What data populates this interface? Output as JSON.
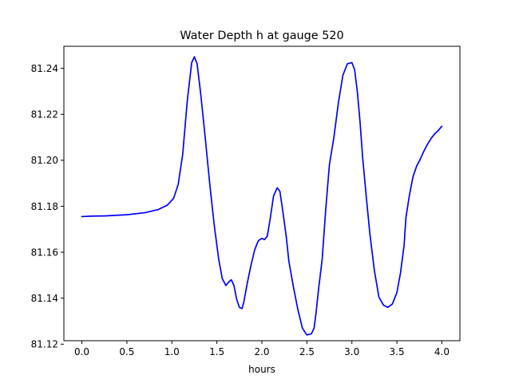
{
  "chart_data": {
    "type": "line",
    "title": "Water Depth h at gauge 520",
    "xlabel": "hours",
    "ylabel": "",
    "xlim": [
      -0.2,
      4.2
    ],
    "ylim": [
      81.1215,
      81.2496
    ],
    "xticks": [
      0.0,
      0.5,
      1.0,
      1.5,
      2.0,
      2.5,
      3.0,
      3.5,
      4.0
    ],
    "xtick_labels": [
      "0.0",
      "0.5",
      "1.0",
      "1.5",
      "2.0",
      "2.5",
      "3.0",
      "3.5",
      "4.0"
    ],
    "yticks": [
      81.12,
      81.14,
      81.16,
      81.18,
      81.2,
      81.22,
      81.24
    ],
    "ytick_labels": [
      "81.12",
      "81.14",
      "81.16",
      "81.18",
      "81.20",
      "81.22",
      "81.24"
    ],
    "grid": false,
    "series": [
      {
        "color": "#0000ff",
        "x": [
          0.0,
          0.1,
          0.25,
          0.5,
          0.7,
          0.85,
          0.95,
          1.02,
          1.07,
          1.12,
          1.17,
          1.22,
          1.25,
          1.28,
          1.32,
          1.37,
          1.42,
          1.47,
          1.52,
          1.56,
          1.6,
          1.63,
          1.66,
          1.69,
          1.72,
          1.75,
          1.78,
          1.8,
          1.84,
          1.88,
          1.92,
          1.96,
          2.0,
          2.03,
          2.06,
          2.09,
          2.13,
          2.17,
          2.2,
          2.23,
          2.27,
          2.3,
          2.35,
          2.4,
          2.45,
          2.5,
          2.55,
          2.58,
          2.6,
          2.63,
          2.67,
          2.71,
          2.75,
          2.8,
          2.85,
          2.9,
          2.95,
          3.0,
          3.03,
          3.06,
          3.09,
          3.12,
          3.16,
          3.2,
          3.25,
          3.3,
          3.35,
          3.4,
          3.45,
          3.5,
          3.54,
          3.58,
          3.6,
          3.64,
          3.68,
          3.72,
          3.76,
          3.8,
          3.84,
          3.88,
          3.92,
          3.96,
          4.0
        ],
        "y": [
          81.1755,
          81.1757,
          81.1758,
          81.1763,
          81.1772,
          81.1786,
          81.1805,
          81.1835,
          81.1895,
          81.2025,
          81.2255,
          81.2425,
          81.245,
          81.242,
          81.229,
          81.21,
          81.19,
          81.172,
          81.157,
          81.1485,
          81.1455,
          81.147,
          81.148,
          81.1455,
          81.1395,
          81.136,
          81.1355,
          81.1385,
          81.147,
          81.1545,
          81.161,
          81.165,
          81.166,
          81.1655,
          81.167,
          81.174,
          81.1845,
          81.188,
          81.1865,
          81.1785,
          81.167,
          81.156,
          81.145,
          81.135,
          81.127,
          81.124,
          81.1245,
          81.127,
          81.133,
          81.144,
          81.157,
          81.179,
          81.198,
          81.21,
          81.225,
          81.237,
          81.242,
          81.2425,
          81.2395,
          81.23,
          81.217,
          81.201,
          81.184,
          81.168,
          81.152,
          81.1405,
          81.137,
          81.136,
          81.1375,
          81.1425,
          81.151,
          81.163,
          81.175,
          81.185,
          81.193,
          81.1975,
          81.2005,
          81.204,
          81.207,
          81.2095,
          81.2115,
          81.213,
          81.2148
        ]
      }
    ]
  }
}
